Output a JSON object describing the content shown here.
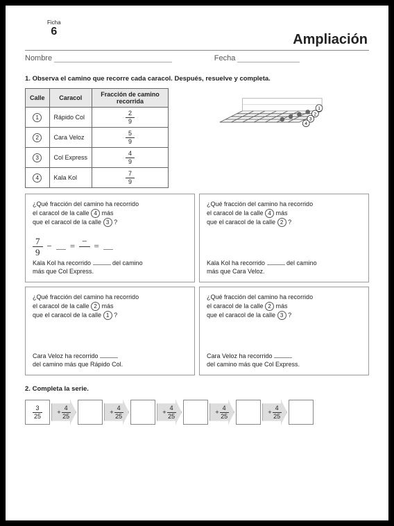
{
  "ficha": {
    "label": "Ficha",
    "num": "6"
  },
  "title": "Ampliación",
  "labels": {
    "nombre": "Nombre",
    "fecha": "Fecha"
  },
  "q1": {
    "num": "1.",
    "text": "Observa el camino que recorre cada caracol. Después, resuelve y completa.",
    "table": {
      "headers": [
        "Calle",
        "Caracol",
        "Fracción de camino recorrida"
      ],
      "rows": [
        {
          "calle": "1",
          "name": "Rápido Col",
          "num": "2",
          "den": "9"
        },
        {
          "calle": "2",
          "name": "Cara Veloz",
          "num": "5",
          "den": "9"
        },
        {
          "calle": "3",
          "name": "Col Express",
          "num": "4",
          "den": "9"
        },
        {
          "calle": "4",
          "name": "Kala Kol",
          "num": "7",
          "den": "9"
        }
      ]
    },
    "boxes": [
      {
        "line1": "¿Qué fracción del camino ha recorrido",
        "line2": "el caracol de la calle",
        "c1": "4",
        "line2b": "más",
        "line3": "que el caracol de la calle",
        "c2": "3",
        "line3b": "?",
        "eq": {
          "n": "7",
          "d": "9"
        },
        "ans1": "Kala Kol ha recorrido",
        "ans2": "del camino",
        "ans3": "más que Col Express."
      },
      {
        "line1": "¿Qué fracción del camino ha recorrido",
        "line2": "el caracol de la calle",
        "c1": "4",
        "line2b": "más",
        "line3": "que el caracol de la calle",
        "c2": "2",
        "line3b": "?",
        "ans1": "Kala Kol ha recorrido",
        "ans2": "del camino",
        "ans3": "más que Cara Veloz."
      },
      {
        "line1": "¿Qué fracción del camino ha recorrido",
        "line2": "el caracol de la calle",
        "c1": "2",
        "line2b": "más",
        "line3": "que el caracol de la calle",
        "c2": "1",
        "line3b": "?",
        "ans1": "Cara Veloz ha recorrido",
        "ans2": "",
        "ans3": "del camino más que Rápido Col."
      },
      {
        "line1": "¿Qué fracción del camino ha recorrido",
        "line2": "el caracol de la calle",
        "c1": "2",
        "line2b": "más",
        "line3": "que el caracol de la calle",
        "c2": "3",
        "line3b": "?",
        "ans1": "Cara Veloz ha recorrido",
        "ans2": "",
        "ans3": "del camino más que Col Express."
      }
    ]
  },
  "q2": {
    "num": "2.",
    "text": "Completa la serie.",
    "start": {
      "n": "3",
      "d": "25"
    },
    "step": {
      "n": "4",
      "d": "25"
    },
    "count": 5
  },
  "illus_labels": [
    "1",
    "2",
    "3",
    "4"
  ]
}
